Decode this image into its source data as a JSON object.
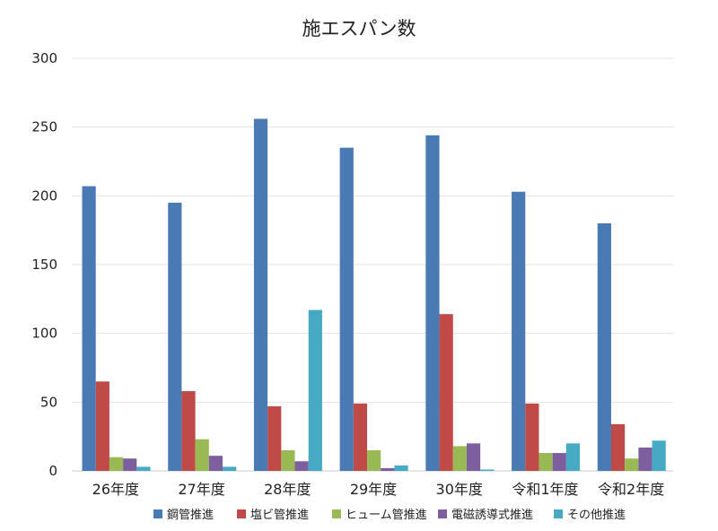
{
  "chart_data": {
    "type": "bar",
    "title": "施エスパン数",
    "xlabel": "",
    "ylabel": "",
    "ylim": [
      0,
      300
    ],
    "yticks": [
      0,
      50,
      100,
      150,
      200,
      250,
      300
    ],
    "grid": true,
    "legend_position": "bottom",
    "categories": [
      "26年度",
      "27年度",
      "28年度",
      "29年度",
      "30年度",
      "令和1年度",
      "令和2年度"
    ],
    "series": [
      {
        "name": "鋼管推進",
        "color": "#4A7AB4",
        "values": [
          207,
          195,
          256,
          235,
          244,
          203,
          180
        ]
      },
      {
        "name": "塩ビ管推進",
        "color": "#BE4B48",
        "values": [
          65,
          58,
          47,
          49,
          114,
          49,
          34
        ]
      },
      {
        "name": "ヒューム管推進",
        "color": "#98B954",
        "values": [
          10,
          23,
          15,
          15,
          18,
          13,
          9
        ]
      },
      {
        "name": "電磁誘導式推進",
        "color": "#7D5FA0",
        "values": [
          9,
          11,
          7,
          2,
          20,
          13,
          17
        ]
      },
      {
        "name": "その他推進",
        "color": "#46AAC4",
        "values": [
          3,
          3,
          117,
          4,
          1,
          20,
          22
        ]
      }
    ]
  }
}
